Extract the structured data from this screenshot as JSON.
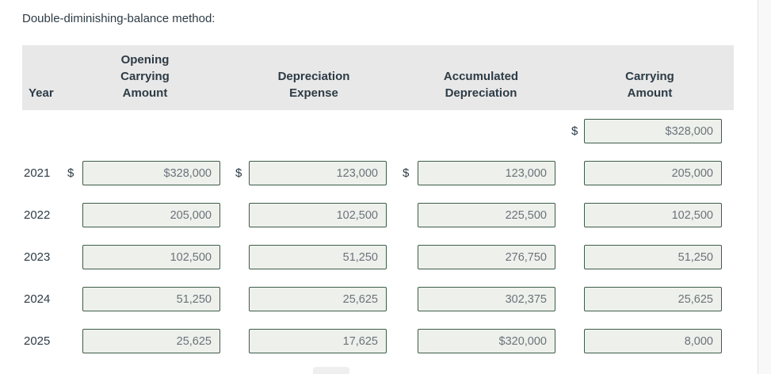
{
  "title": "Double-diminishing-balance method:",
  "colors": {
    "page_bg": "#ffffff",
    "header_bg": "#e8e8e8",
    "input_border": "#3d5d49",
    "input_fill": "#eef0ec",
    "text_primary": "#2d3b45",
    "value_text": "#6b7379",
    "gutter_bg": "#f8f8f8",
    "gutter_border": "#e2e2e2"
  },
  "table": {
    "headers": {
      "year": "Year",
      "opening": "Opening\nCarrying\nAmount",
      "depreciation": "Depreciation\nExpense",
      "accumulated": "Accumulated\nDepreciation",
      "carrying": "Carrying\nAmount"
    },
    "rows": [
      {
        "label": "",
        "cells": {
          "carrying": {
            "prefix": "$",
            "value": "$328,000"
          }
        }
      },
      {
        "label": "2021",
        "cells": {
          "opening": {
            "prefix": "$",
            "value": "$328,000"
          },
          "depreciation": {
            "prefix": "$",
            "value": "123,000"
          },
          "accumulated": {
            "prefix": "$",
            "value": "123,000"
          },
          "carrying": {
            "value": "205,000"
          }
        }
      },
      {
        "label": "2022",
        "cells": {
          "opening": {
            "value": "205,000"
          },
          "depreciation": {
            "value": "102,500"
          },
          "accumulated": {
            "value": "225,500"
          },
          "carrying": {
            "value": "102,500"
          }
        }
      },
      {
        "label": "2023",
        "cells": {
          "opening": {
            "value": "102,500"
          },
          "depreciation": {
            "value": "51,250"
          },
          "accumulated": {
            "value": "276,750"
          },
          "carrying": {
            "value": "51,250"
          }
        }
      },
      {
        "label": "2024",
        "cells": {
          "opening": {
            "value": "51,250"
          },
          "depreciation": {
            "value": "25,625"
          },
          "accumulated": {
            "value": "302,375"
          },
          "carrying": {
            "value": "25,625"
          }
        }
      },
      {
        "label": "2025",
        "cells": {
          "opening": {
            "value": "25,625"
          },
          "depreciation": {
            "value": "17,625"
          },
          "accumulated": {
            "value": "$320,000"
          },
          "carrying": {
            "value": "8,000"
          }
        }
      }
    ]
  }
}
